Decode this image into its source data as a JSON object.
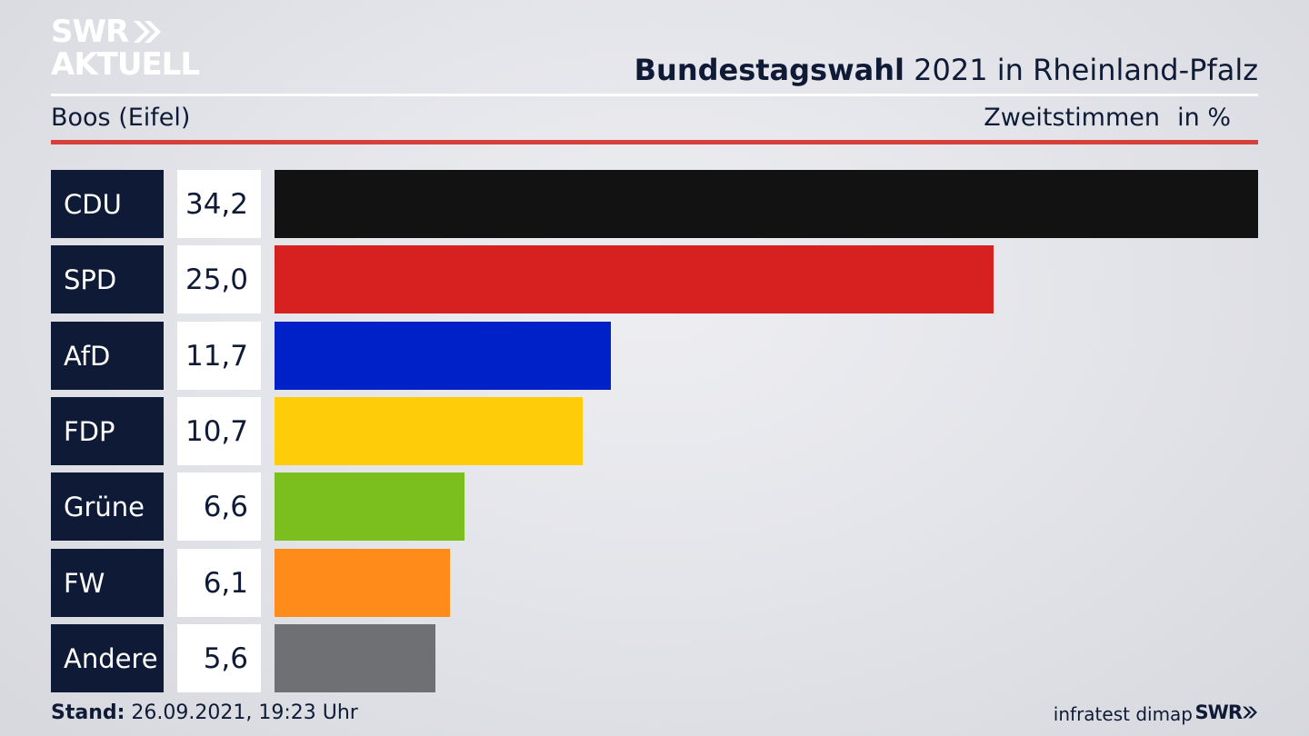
{
  "logo": {
    "line1": "SWR",
    "line2": "AKTUELL"
  },
  "header": {
    "title_bold": "Bundestagswahl",
    "title_rest": " 2021 in Rheinland-Pfalz"
  },
  "subheader": {
    "location": "Boos (Eifel)",
    "vote_type": "Zweitstimmen",
    "unit": "in %"
  },
  "chart_data": {
    "type": "bar",
    "orientation": "horizontal",
    "categories": [
      "CDU",
      "SPD",
      "AfD",
      "FDP",
      "Grüne",
      "FW",
      "Andere"
    ],
    "values": [
      34.2,
      25.0,
      11.7,
      10.7,
      6.6,
      6.1,
      5.6
    ],
    "value_labels": [
      "34,2",
      "25,0",
      "11,7",
      "10,7",
      "6,6",
      "6,1",
      "5,6"
    ],
    "colors": [
      "#121212",
      "#d72020",
      "#0021c8",
      "#ffcc0a",
      "#7abf1e",
      "#ff8c1a",
      "#6f7073"
    ],
    "title": "Bundestagswahl 2021 in Rheinland-Pfalz",
    "xlabel": "",
    "ylabel": "",
    "grid": false,
    "legend": "none"
  },
  "footer": {
    "stand_label": "Stand:",
    "stand_value": " 26.09.2021, 19:23 Uhr",
    "source": "infratest dimap",
    "logo": "SWR"
  },
  "colors": {
    "navy": "#0f1b36",
    "accent_red": "#d7403a",
    "white": "#ffffff"
  }
}
